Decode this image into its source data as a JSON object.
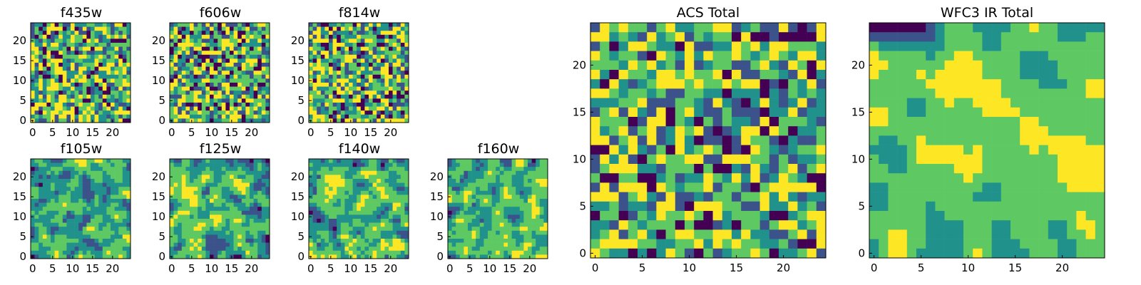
{
  "colormap": [
    "#440154",
    "#3b528b",
    "#21918c",
    "#5ec962",
    "#fde725"
  ],
  "chart_data": [
    {
      "type": "heatmap",
      "title": "f435w",
      "grid_size": 25,
      "ylim": [
        0,
        24
      ],
      "xticks": [
        "0",
        "5",
        "10",
        "15",
        "20"
      ],
      "yticks": [
        "0",
        "5",
        "10",
        "15",
        "20"
      ],
      "seed": 11,
      "smooth": 0,
      "values_note": ""
    },
    {
      "type": "heatmap",
      "title": "f606w",
      "grid_size": 25,
      "ylim": [
        0,
        24
      ],
      "xticks": [
        "0",
        "5",
        "10",
        "15",
        "20"
      ],
      "yticks": [
        "0",
        "5",
        "10",
        "15",
        "20"
      ],
      "seed": 23,
      "smooth": 0
    },
    {
      "type": "heatmap",
      "title": "f814w",
      "grid_size": 25,
      "ylim": [
        0,
        24
      ],
      "xticks": [
        "0",
        "5",
        "10",
        "15",
        "20"
      ],
      "yticks": [
        "0",
        "5",
        "10",
        "15",
        "20"
      ],
      "seed": 37,
      "smooth": 0
    },
    {
      "type": "heatmap",
      "title": "f105w",
      "grid_size": 25,
      "ylim": [
        0,
        24
      ],
      "xticks": [
        "0",
        "5",
        "10",
        "15",
        "20"
      ],
      "yticks": [
        "0",
        "5",
        "10",
        "15",
        "20"
      ],
      "seed": 41,
      "smooth": 1
    },
    {
      "type": "heatmap",
      "title": "f125w",
      "grid_size": 25,
      "ylim": [
        0,
        24
      ],
      "xticks": [
        "0",
        "5",
        "10",
        "15",
        "20"
      ],
      "yticks": [
        "0",
        "5",
        "10",
        "15",
        "20"
      ],
      "seed": 53,
      "smooth": 1
    },
    {
      "type": "heatmap",
      "title": "f140w",
      "grid_size": 25,
      "ylim": [
        0,
        24
      ],
      "xticks": [
        "0",
        "5",
        "10",
        "15",
        "20"
      ],
      "yticks": [
        "0",
        "5",
        "10",
        "15",
        "20"
      ],
      "seed": 67,
      "smooth": 1
    },
    {
      "type": "heatmap",
      "title": "f160w",
      "grid_size": 25,
      "ylim": [
        0,
        24
      ],
      "xticks": [
        "0",
        "5",
        "10",
        "15",
        "20"
      ],
      "yticks": [
        "0",
        "5",
        "10",
        "15",
        "20"
      ],
      "seed": 79,
      "smooth": 1
    },
    {
      "type": "heatmap",
      "title": "ACS Total",
      "grid_size": 25,
      "ylim": [
        0,
        24
      ],
      "xticks": [
        "0",
        "5",
        "10",
        "15",
        "20"
      ],
      "yticks": [
        "0",
        "5",
        "10",
        "15",
        "20"
      ],
      "seed": 83,
      "smooth": 0
    },
    {
      "type": "heatmap",
      "title": "WFC3 IR Total",
      "grid_size": 25,
      "ylim": [
        0,
        24
      ],
      "xticks": [
        "0",
        "5",
        "10",
        "15",
        "20"
      ],
      "yticks": [
        "0",
        "5",
        "10",
        "15",
        "20"
      ],
      "seed": 97,
      "smooth": 2
    }
  ]
}
